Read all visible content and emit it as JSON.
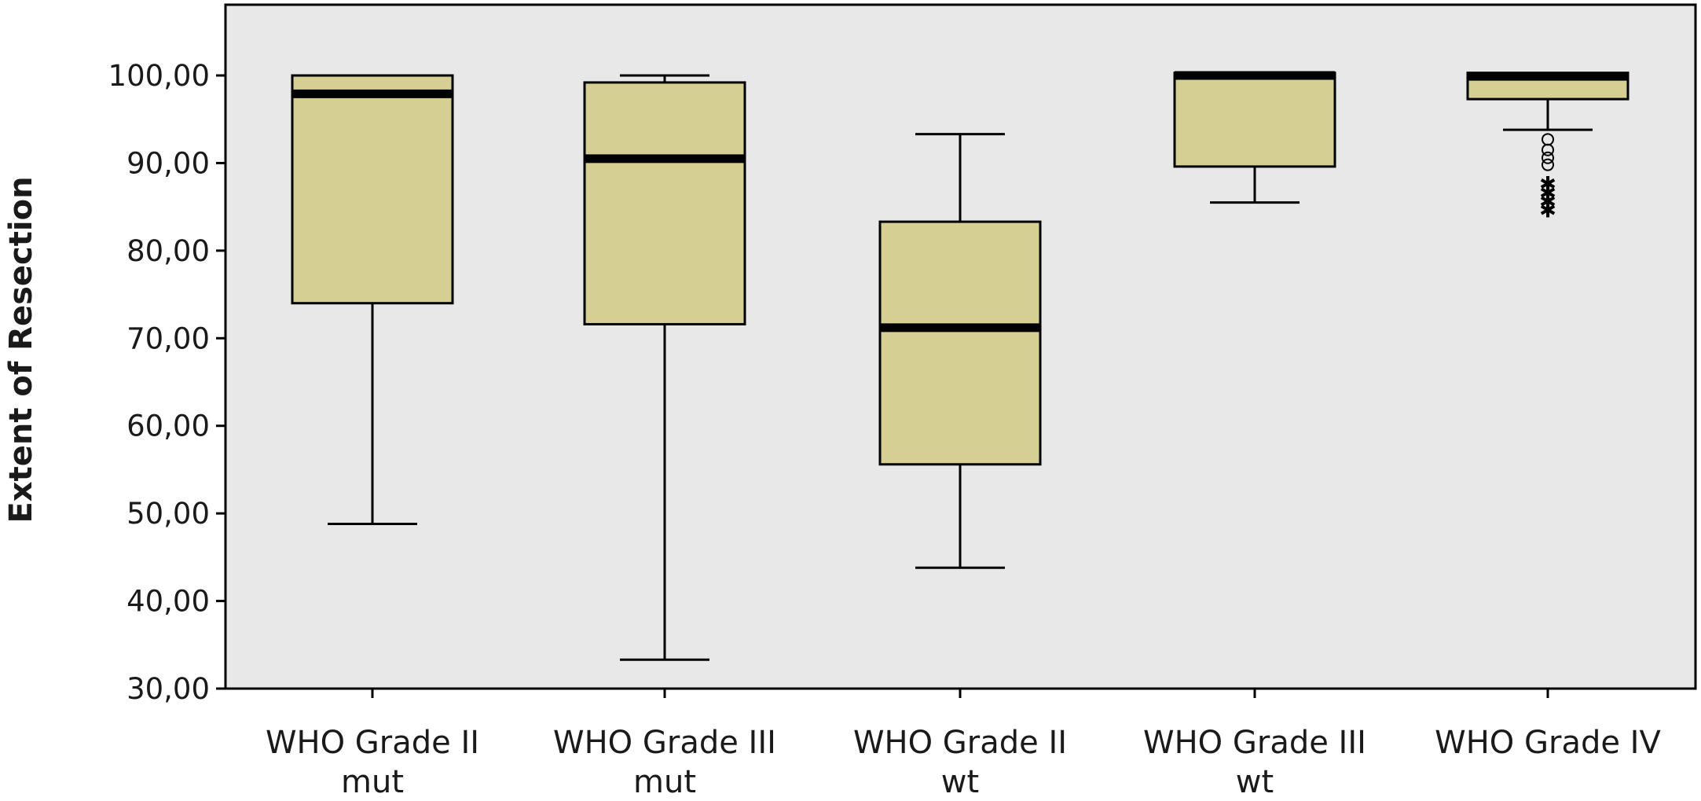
{
  "chart_data": {
    "type": "boxplot",
    "title": "",
    "xlabel": "",
    "ylabel": "Extent of Resection",
    "ylim": [
      30,
      100
    ],
    "yticks": [
      30,
      40,
      50,
      60,
      70,
      80,
      90,
      100
    ],
    "ytick_labels": [
      "30,00",
      "40,00",
      "50,00",
      "60,00",
      "70,00",
      "80,00",
      "90,00",
      "100,00"
    ],
    "grid": false,
    "colors": {
      "box_fill": "#d6cf94",
      "plot_bg": "#e8e8e8",
      "stroke": "#000000"
    },
    "categories": [
      {
        "line1": "WHO Grade II",
        "line2": "mut"
      },
      {
        "line1": "WHO Grade III",
        "line2": "mut"
      },
      {
        "line1": "WHO Grade II",
        "line2": "wt"
      },
      {
        "line1": "WHO Grade III",
        "line2": "wt"
      },
      {
        "line1": "WHO Grade IV",
        "line2": ""
      }
    ],
    "boxes": [
      {
        "whisker_low": 48.8,
        "q1": 74.0,
        "median": 97.9,
        "q3": 100.0,
        "whisker_high": 100.0,
        "outliers": [],
        "extremes": []
      },
      {
        "whisker_low": 33.3,
        "q1": 71.6,
        "median": 90.5,
        "q3": 99.2,
        "whisker_high": 100.0,
        "outliers": [],
        "extremes": []
      },
      {
        "whisker_low": 43.8,
        "q1": 55.6,
        "median": 71.2,
        "q3": 83.3,
        "whisker_high": 93.3,
        "outliers": [],
        "extremes": []
      },
      {
        "whisker_low": 85.5,
        "q1": 89.6,
        "median": 100.0,
        "q3": 100.3,
        "whisker_high": 100.3,
        "outliers": [],
        "extremes": []
      },
      {
        "whisker_low": 93.8,
        "q1": 97.3,
        "median": 99.9,
        "q3": 100.3,
        "whisker_high": 100.3,
        "outliers": [
          92.7,
          91.5,
          90.6,
          89.8
        ],
        "extremes": [
          87.6,
          86.6,
          85.6,
          84.6
        ]
      }
    ]
  }
}
